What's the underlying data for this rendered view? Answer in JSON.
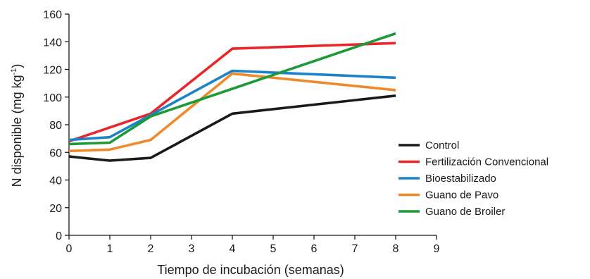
{
  "chart_data": {
    "type": "line",
    "title": "",
    "xlabel": "Tiempo de incubación (semanas)",
    "ylabel_main": "N disponible (mg kg",
    "ylabel_sup": "-1",
    "ylabel_close": ")",
    "xlim": [
      0,
      9
    ],
    "ylim": [
      0,
      160
    ],
    "xticks": [
      "0",
      "1",
      "2",
      "3",
      "4",
      "5",
      "6",
      "7",
      "8",
      "9"
    ],
    "yticks": [
      "0",
      "20",
      "40",
      "60",
      "80",
      "100",
      "120",
      "140",
      "160"
    ],
    "grid": false,
    "legend_position": "right",
    "x": [
      0,
      1,
      2,
      4,
      8
    ],
    "series": [
      {
        "name": "Control",
        "color": "#1a1a1a",
        "values": [
          57,
          54,
          56,
          88,
          101
        ]
      },
      {
        "name": "Fertilización Convencional",
        "color": "#e8262a",
        "values": [
          68,
          78,
          88,
          135,
          139
        ]
      },
      {
        "name": "Bioestabilizado",
        "color": "#1b83c6",
        "values": [
          69,
          71,
          87,
          119,
          114
        ]
      },
      {
        "name": "Guano de Pavo",
        "color": "#ef8a2c",
        "values": [
          61,
          62,
          69,
          117,
          105
        ]
      },
      {
        "name": "Guano de Broiler",
        "color": "#1c9a3a",
        "values": [
          66,
          67,
          86,
          106,
          146
        ]
      }
    ]
  }
}
